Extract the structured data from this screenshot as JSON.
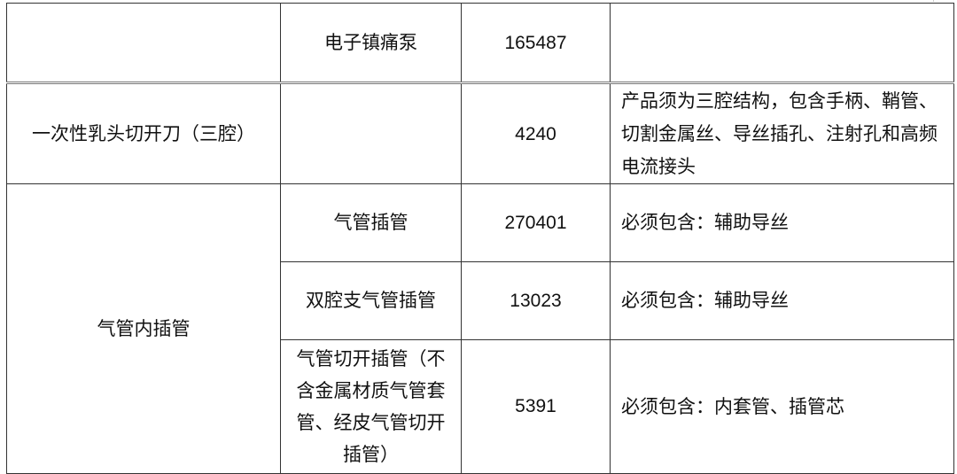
{
  "table": {
    "rows": [
      {
        "category": "",
        "name": "电子镇痛泵",
        "count": "165487",
        "note": ""
      },
      {
        "category": "一次性乳头切开刀（三腔）",
        "name": "",
        "count": "4240",
        "note": "产品须为三腔结构，包含手柄、鞘管、切割金属丝、导丝插孔、注射孔和高频电流接头"
      },
      {
        "category": "气管内插管",
        "name": "气管插管",
        "count": "270401",
        "note": "必须包含：辅助导丝"
      },
      {
        "name": "双腔支气管插管",
        "count": "13023",
        "note": "必须包含：辅助导丝"
      },
      {
        "name": "气管切开插管（不含金属材质气管套管、经皮气管切开插管）",
        "count": "5391",
        "note": "必须包含：内套管、插管芯"
      }
    ]
  }
}
